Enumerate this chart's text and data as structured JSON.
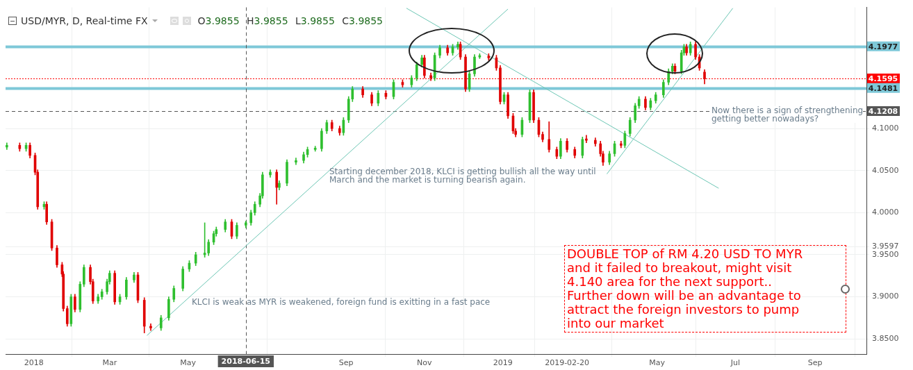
{
  "chart_data": {
    "type": "candlestick",
    "title": "USD/MYR, D, Real-time FX",
    "subtitle": "O3.9855 H3.9855 L3.9855 C3.9855",
    "annotations": [
      "KLCI is weak as MYR is weakened, foreign fund is exitting in a fast pace",
      "Starting december 2018, KLCI is getting bullish all the way until\nMarch and the market is turning bearish again.",
      "Now there is a sign of strengthening\ngetting better nowadays?",
      "DOUBLE TOP of RM 4.20 USD TO MYR\nand it failed to breakout, might visit\n4.140 area for the next support..\nFurther down will be an advantage to\nattract the foreign investors to pump\ninto our market"
    ],
    "x": [
      "2017-12-11",
      "2017-12-21",
      "2017-12-26",
      "2017-12-29",
      "2018-01-02",
      "2018-01-04",
      "2018-01-09",
      "2018-01-11",
      "2018-01-15",
      "2018-01-19",
      "2018-01-23",
      "2018-01-24",
      "2018-01-27",
      "2018-01-30",
      "2018-02-02",
      "2018-02-06",
      "2018-02-09",
      "2018-02-14",
      "2018-02-16",
      "2018-02-20",
      "2018-02-23",
      "2018-02-27",
      "2018-03-01",
      "2018-03-05",
      "2018-03-09",
      "2018-03-14",
      "2018-03-20",
      "2018-03-23",
      "2018-03-28",
      "2018-04-02",
      "2018-04-10",
      "2018-04-16",
      "2018-04-20",
      "2018-04-27",
      "2018-05-02",
      "2018-05-07",
      "2018-05-14",
      "2018-05-17",
      "2018-05-21",
      "2018-05-23",
      "2018-05-30",
      "2018-06-04",
      "2018-06-08",
      "2018-06-15",
      "2018-06-19",
      "2018-06-22",
      "2018-06-26",
      "2018-06-28",
      "2018-07-04",
      "2018-07-09",
      "2018-07-11",
      "2018-07-17",
      "2018-07-24",
      "2018-07-30",
      "2018-08-02",
      "2018-08-08",
      "2018-08-13",
      "2018-08-17",
      "2018-08-21",
      "2018-08-27",
      "2018-08-30",
      "2018-09-03",
      "2018-09-06",
      "2018-09-14",
      "2018-09-21",
      "2018-09-26",
      "2018-10-02",
      "2018-10-08",
      "2018-10-15",
      "2018-10-22",
      "2018-10-26",
      "2018-10-30",
      "2018-11-01",
      "2018-11-06",
      "2018-11-09",
      "2018-11-13",
      "2018-11-19",
      "2018-11-23",
      "2018-11-27",
      "2018-11-29",
      "2018-12-03",
      "2018-12-06",
      "2018-12-10",
      "2018-12-14",
      "2018-12-21",
      "2018-12-27",
      "2018-12-30",
      "2019-01-02",
      "2019-01-05",
      "2019-01-09",
      "2019-01-11",
      "2019-01-16",
      "2019-01-22",
      "2019-01-25",
      "2019-01-29",
      "2019-02-01",
      "2019-02-06",
      "2019-02-12",
      "2019-02-15",
      "2019-02-20",
      "2019-02-26",
      "2019-03-04",
      "2019-03-07",
      "2019-03-14",
      "2019-03-18",
      "2019-03-20",
      "2019-03-25",
      "2019-03-29",
      "2019-04-03",
      "2019-04-06",
      "2019-04-10",
      "2019-04-14",
      "2019-04-17",
      "2019-04-22",
      "2019-04-26",
      "2019-04-30",
      "2019-05-06",
      "2019-05-10",
      "2019-05-13",
      "2019-05-15",
      "2019-05-20",
      "2019-05-22",
      "2019-05-24",
      "2019-05-27",
      "2019-05-31",
      "2019-06-03",
      "2019-06-07"
    ],
    "ohlc": [
      [
        4.078,
        4.083,
        4.075,
        4.08
      ],
      [
        4.08,
        4.083,
        4.073,
        4.076
      ],
      [
        4.076,
        4.083,
        4.073,
        4.08
      ],
      [
        4.08,
        4.083,
        4.065,
        4.068
      ],
      [
        4.068,
        4.071,
        4.045,
        4.048
      ],
      [
        4.048,
        4.051,
        4.004,
        4.007
      ],
      [
        4.007,
        4.013,
        4.004,
        4.01
      ],
      [
        4.01,
        4.013,
        3.986,
        3.989
      ],
      [
        3.989,
        3.992,
        3.955,
        3.958
      ],
      [
        3.958,
        3.961,
        3.935,
        3.938
      ],
      [
        3.938,
        3.941,
        3.924,
        3.927
      ],
      [
        3.927,
        3.93,
        3.883,
        3.886
      ],
      [
        3.886,
        3.889,
        3.865,
        3.868
      ],
      [
        3.868,
        3.903,
        3.865,
        3.9
      ],
      [
        3.9,
        3.903,
        3.882,
        3.885
      ],
      [
        3.885,
        3.918,
        3.882,
        3.915
      ],
      [
        3.915,
        3.938,
        3.912,
        3.935
      ],
      [
        3.935,
        3.938,
        3.915,
        3.918
      ],
      [
        3.918,
        3.921,
        3.892,
        3.895
      ],
      [
        3.895,
        3.903,
        3.892,
        3.9
      ],
      [
        3.9,
        3.909,
        3.897,
        3.906
      ],
      [
        3.906,
        3.921,
        3.903,
        3.918
      ],
      [
        3.918,
        3.931,
        3.915,
        3.928
      ],
      [
        3.928,
        3.931,
        3.891,
        3.894
      ],
      [
        3.894,
        3.903,
        3.891,
        3.9
      ],
      [
        3.9,
        3.923,
        3.897,
        3.92
      ],
      [
        3.92,
        3.929,
        3.917,
        3.926
      ],
      [
        3.926,
        3.929,
        3.893,
        3.896
      ],
      [
        3.896,
        3.899,
        3.857,
        3.865
      ],
      [
        3.865,
        3.868,
        3.86,
        3.863
      ],
      [
        3.863,
        3.878,
        3.86,
        3.875
      ],
      [
        3.875,
        3.9,
        3.872,
        3.897
      ],
      [
        3.897,
        3.913,
        3.894,
        3.91
      ],
      [
        3.91,
        3.936,
        3.907,
        3.933
      ],
      [
        3.933,
        3.943,
        3.93,
        3.94
      ],
      [
        3.94,
        3.953,
        3.937,
        3.95
      ],
      [
        3.95,
        3.988,
        3.947,
        3.952
      ],
      [
        3.952,
        3.968,
        3.949,
        3.965
      ],
      [
        3.965,
        3.978,
        3.962,
        3.975
      ],
      [
        3.975,
        3.983,
        3.972,
        3.98
      ],
      [
        3.98,
        3.992,
        3.977,
        3.989
      ],
      [
        3.989,
        3.992,
        3.969,
        3.972
      ],
      [
        3.972,
        3.988,
        3.969,
        3.985
      ],
      [
        3.985,
        3.99,
        3.982,
        3.988
      ],
      [
        3.988,
        4.003,
        3.985,
        4.0
      ],
      [
        4.0,
        4.013,
        3.997,
        4.01
      ],
      [
        4.01,
        4.023,
        4.007,
        4.02
      ],
      [
        4.02,
        4.048,
        4.017,
        4.045
      ],
      [
        4.045,
        4.051,
        4.042,
        4.048
      ],
      [
        4.048,
        4.051,
        4.01,
        4.03
      ],
      [
        4.03,
        4.038,
        4.027,
        4.035
      ],
      [
        4.035,
        4.063,
        4.032,
        4.06
      ],
      [
        4.06,
        4.065,
        4.057,
        4.062
      ],
      [
        4.062,
        4.072,
        4.059,
        4.069
      ],
      [
        4.069,
        4.078,
        4.066,
        4.075
      ],
      [
        4.075,
        4.079,
        4.073,
        4.076
      ],
      [
        4.076,
        4.1,
        4.073,
        4.097
      ],
      [
        4.097,
        4.11,
        4.094,
        4.107
      ],
      [
        4.107,
        4.11,
        4.097,
        4.1
      ],
      [
        4.1,
        4.103,
        4.092,
        4.095
      ],
      [
        4.095,
        4.113,
        4.092,
        4.11
      ],
      [
        4.11,
        4.138,
        4.107,
        4.135
      ],
      [
        4.135,
        4.15,
        4.132,
        4.147
      ],
      [
        4.147,
        4.15,
        4.137,
        4.14
      ],
      [
        4.14,
        4.143,
        4.127,
        4.13
      ],
      [
        4.13,
        4.145,
        4.127,
        4.142
      ],
      [
        4.142,
        4.145,
        4.135,
        4.138
      ],
      [
        4.138,
        4.158,
        4.135,
        4.155
      ],
      [
        4.155,
        4.158,
        4.149,
        4.152
      ],
      [
        4.152,
        4.163,
        4.149,
        4.16
      ],
      [
        4.16,
        4.179,
        4.157,
        4.176
      ],
      [
        4.176,
        4.187,
        4.173,
        4.184
      ],
      [
        4.184,
        4.187,
        4.16,
        4.163
      ],
      [
        4.163,
        4.166,
        4.157,
        4.16
      ],
      [
        4.16,
        4.19,
        4.157,
        4.187
      ],
      [
        4.187,
        4.199,
        4.184,
        4.196
      ],
      [
        4.196,
        4.199,
        4.187,
        4.19
      ],
      [
        4.19,
        4.2,
        4.187,
        4.197
      ],
      [
        4.197,
        4.203,
        4.194,
        4.2
      ],
      [
        4.2,
        4.203,
        4.182,
        4.185
      ],
      [
        4.185,
        4.188,
        4.144,
        4.147
      ],
      [
        4.147,
        4.168,
        4.144,
        4.165
      ],
      [
        4.165,
        4.188,
        4.162,
        4.185
      ],
      [
        4.185,
        4.189,
        4.183,
        4.186
      ],
      [
        4.186,
        4.189,
        4.181,
        4.184
      ],
      [
        4.184,
        4.187,
        4.169,
        4.172
      ],
      [
        4.172,
        4.175,
        4.129,
        4.132
      ],
      [
        4.132,
        4.143,
        4.129,
        4.14
      ],
      [
        4.14,
        4.143,
        4.112,
        4.115
      ],
      [
        4.115,
        4.118,
        4.094,
        4.097
      ],
      [
        4.097,
        4.1,
        4.09,
        4.093
      ],
      [
        4.093,
        4.113,
        4.09,
        4.11
      ],
      [
        4.11,
        4.146,
        4.107,
        4.143
      ],
      [
        4.143,
        4.146,
        4.107,
        4.11
      ],
      [
        4.11,
        4.113,
        4.09,
        4.093
      ],
      [
        4.093,
        4.096,
        4.084,
        4.087
      ],
      [
        4.087,
        4.108,
        4.072,
        4.075
      ],
      [
        4.075,
        4.078,
        4.064,
        4.067
      ],
      [
        4.067,
        4.088,
        4.064,
        4.085
      ],
      [
        4.085,
        4.088,
        4.072,
        4.075
      ],
      [
        4.075,
        4.078,
        4.065,
        4.068
      ],
      [
        4.068,
        4.09,
        4.065,
        4.087
      ],
      [
        4.087,
        4.092,
        4.083,
        4.086
      ],
      [
        4.086,
        4.089,
        4.079,
        4.082
      ],
      [
        4.082,
        4.085,
        4.067,
        4.07
      ],
      [
        4.07,
        4.073,
        4.056,
        4.06
      ],
      [
        4.06,
        4.073,
        4.057,
        4.07
      ],
      [
        4.07,
        4.085,
        4.067,
        4.082
      ],
      [
        4.082,
        4.085,
        4.077,
        4.08
      ],
      [
        4.08,
        4.097,
        4.077,
        4.094
      ],
      [
        4.094,
        4.113,
        4.091,
        4.11
      ],
      [
        4.11,
        4.13,
        4.107,
        4.127
      ],
      [
        4.127,
        4.138,
        4.124,
        4.135
      ],
      [
        4.135,
        4.138,
        4.122,
        4.125
      ],
      [
        4.125,
        4.136,
        4.122,
        4.133
      ],
      [
        4.133,
        4.143,
        4.13,
        4.14
      ],
      [
        4.14,
        4.158,
        4.137,
        4.155
      ],
      [
        4.155,
        4.171,
        4.152,
        4.168
      ],
      [
        4.168,
        4.177,
        4.165,
        4.174
      ],
      [
        4.174,
        4.177,
        4.165,
        4.168
      ],
      [
        4.168,
        4.193,
        4.165,
        4.19
      ],
      [
        4.19,
        4.2,
        4.187,
        4.197
      ],
      [
        4.197,
        4.2,
        4.187,
        4.19
      ],
      [
        4.19,
        4.203,
        4.187,
        4.2
      ],
      [
        4.2,
        4.203,
        4.182,
        4.185
      ],
      [
        4.185,
        4.188,
        4.169,
        4.172
      ],
      [
        4.167,
        4.17,
        4.153,
        4.159
      ]
    ],
    "series": [
      {
        "type": "line",
        "color": "#6cc6b4",
        "x": [
          "2018-03-30",
          "2019-01-05"
        ],
        "values": [
          3.854,
          4.242
        ]
      },
      {
        "type": "line",
        "color": "#6cc6b4",
        "x": [
          "2018-10-18",
          "2019-06-18"
        ],
        "values": [
          4.243,
          4.029
        ]
      },
      {
        "type": "line",
        "color": "#6cc6b4",
        "x": [
          "2019-03-23",
          "2019-06-29"
        ],
        "values": [
          4.046,
          4.243
        ]
      }
    ],
    "ref_lines": [
      {
        "axis": "y",
        "value": 4.1977,
        "label": "4.1977",
        "color": "#7ec8d8",
        "line_style": "solid"
      },
      {
        "axis": "y",
        "value": 4.1595,
        "label": "4.1595",
        "color": "#ff0000",
        "line_style": "dotted"
      },
      {
        "axis": "y",
        "value": 4.1481,
        "label": "4.1481",
        "color": "#7ec8d8",
        "line_style": "solid"
      },
      {
        "axis": "y",
        "value": 4.1208,
        "label": "4.1208",
        "color": "#555555",
        "line_style": "dashed"
      },
      {
        "axis": "x",
        "value": "2018-06-15",
        "label": "2018-06-15",
        "color": "#555555",
        "line_style": "dashed"
      }
    ],
    "xlim": [
      "2017-12-10",
      "2019-10-11"
    ],
    "xticks": [
      {
        "value": "2018-01-01",
        "label": "2018"
      },
      {
        "value": "2018-03-01",
        "label": "Mar"
      },
      {
        "value": "2018-05-01",
        "label": "May"
      },
      {
        "value": "2018-09-01",
        "label": "Sep"
      },
      {
        "value": "2018-11-01",
        "label": "Nov"
      },
      {
        "value": "2019-01-01",
        "label": "2019"
      },
      {
        "value": "2019-02-20",
        "label": "2019-02-20"
      },
      {
        "value": "2019-05-01",
        "label": "May"
      },
      {
        "value": "2019-07-01",
        "label": "Jul"
      },
      {
        "value": "2019-09-01",
        "label": "Sep"
      }
    ],
    "ylim": [
      3.832,
      4.244
    ],
    "yticks": [
      {
        "value": 3.85,
        "label": "3.8500"
      },
      {
        "value": 3.9,
        "label": "3.9000"
      },
      {
        "value": 3.95,
        "label": "3.9500"
      },
      {
        "value": 3.9597,
        "label": "3.9597"
      },
      {
        "value": 4.0,
        "label": "4.0000"
      },
      {
        "value": 4.05,
        "label": "4.0500"
      },
      {
        "value": 4.1,
        "label": "4.1000"
      }
    ],
    "grid": true,
    "legend": false
  }
}
